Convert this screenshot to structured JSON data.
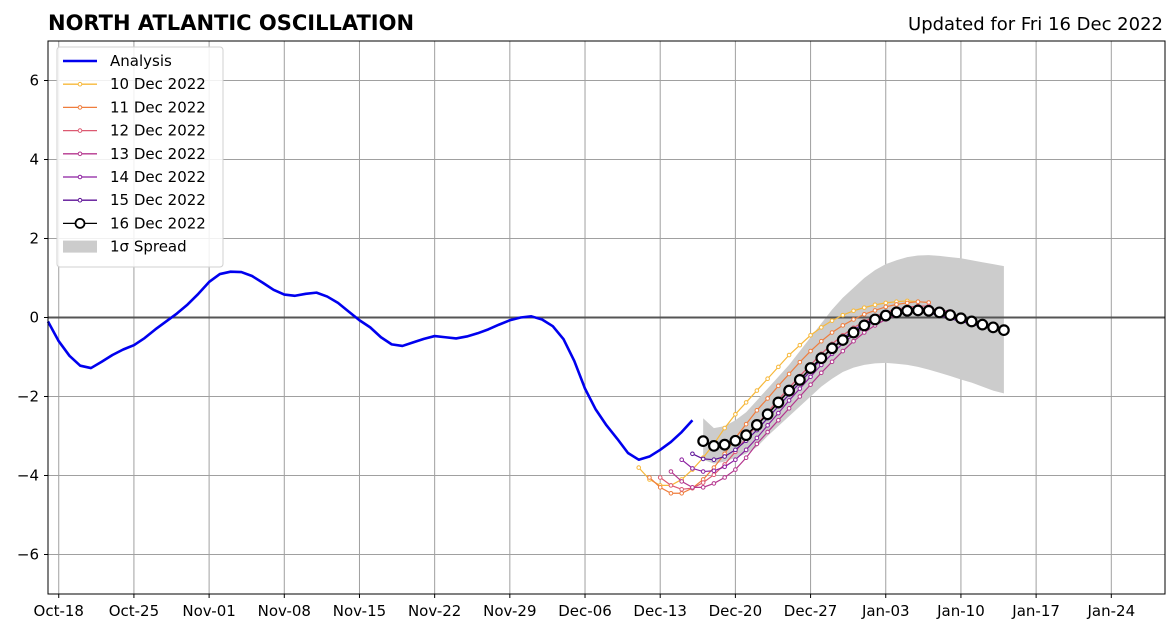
{
  "chart_data": {
    "type": "line",
    "title": "NORTH ATLANTIC OSCILLATION",
    "subtitle": "Updated for Fri 16 Dec 2022",
    "xlabel": "",
    "ylabel": "",
    "xlim": [
      "2022-10-17",
      "2023-01-29"
    ],
    "ylim": [
      -7,
      7
    ],
    "grid": true,
    "zero_line": true,
    "legend_position": "top-left",
    "x_ticks": [
      "Oct-18",
      "Oct-25",
      "Nov-01",
      "Nov-08",
      "Nov-15",
      "Nov-22",
      "Nov-29",
      "Dec-06",
      "Dec-13",
      "Dec-20",
      "Dec-27",
      "Jan-03",
      "Jan-10",
      "Jan-17",
      "Jan-24"
    ],
    "x_tick_dates": [
      "2022-10-18",
      "2022-10-25",
      "2022-11-01",
      "2022-11-08",
      "2022-11-15",
      "2022-11-22",
      "2022-11-29",
      "2022-12-06",
      "2022-12-13",
      "2022-12-20",
      "2022-12-27",
      "2023-01-03",
      "2023-01-10",
      "2023-01-17",
      "2023-01-24"
    ],
    "y_ticks": [
      -6,
      -4,
      -2,
      0,
      2,
      4,
      6
    ],
    "y_tick_labels": [
      "−6",
      "−4",
      "−2",
      "0",
      "2",
      "4",
      "6"
    ],
    "analysis": {
      "name": "Analysis",
      "color": "#0000ee",
      "start": "2022-10-17",
      "values": [
        -0.1,
        -0.6,
        -0.97,
        -1.22,
        -1.28,
        -1.12,
        -0.95,
        -0.81,
        -0.7,
        -0.52,
        -0.3,
        -0.1,
        0.1,
        0.33,
        0.6,
        0.9,
        1.1,
        1.16,
        1.15,
        1.05,
        0.88,
        0.7,
        0.58,
        0.55,
        0.6,
        0.63,
        0.53,
        0.37,
        0.15,
        -0.07,
        -0.25,
        -0.5,
        -0.68,
        -0.72,
        -0.63,
        -0.54,
        -0.47,
        -0.5,
        -0.53,
        -0.48,
        -0.4,
        -0.3,
        -0.18,
        -0.07,
        0.0,
        0.03,
        -0.05,
        -0.22,
        -0.55,
        -1.1,
        -1.8,
        -2.33,
        -2.73,
        -3.07,
        -3.43,
        -3.6,
        -3.52,
        -3.35,
        -3.15,
        -2.9,
        -2.6
      ]
    },
    "forecasts": [
      {
        "name": "10 Dec 2022",
        "color": "#f7b83a",
        "start": "2022-12-11",
        "values": [
          -3.8,
          -4.1,
          -4.25,
          -4.25,
          -4.1,
          -3.85,
          -3.55,
          -3.2,
          -2.8,
          -2.45,
          -2.15,
          -1.85,
          -1.55,
          -1.25,
          -0.95,
          -0.7,
          -0.45,
          -0.25,
          -0.08,
          0.06,
          0.17,
          0.25,
          0.32,
          0.37,
          0.4,
          0.42,
          0.4
        ]
      },
      {
        "name": "11 Dec 2022",
        "color": "#ef7d3d",
        "start": "2022-12-12",
        "values": [
          -4.05,
          -4.3,
          -4.45,
          -4.45,
          -4.32,
          -4.1,
          -3.8,
          -3.45,
          -3.05,
          -2.7,
          -2.35,
          -2.05,
          -1.73,
          -1.43,
          -1.13,
          -0.85,
          -0.6,
          -0.38,
          -0.2,
          -0.05,
          0.08,
          0.18,
          0.27,
          0.33,
          0.37,
          0.4,
          0.38
        ]
      },
      {
        "name": "12 Dec 2022",
        "color": "#dc5971",
        "start": "2022-12-13",
        "values": [
          -4.05,
          -4.25,
          -4.35,
          -4.32,
          -4.18,
          -3.98,
          -3.72,
          -3.4,
          -3.05,
          -2.72,
          -2.4,
          -2.08,
          -1.78,
          -1.48,
          -1.2,
          -0.92,
          -0.67,
          -0.45,
          -0.26,
          -0.1,
          0.03,
          0.13,
          0.21,
          0.26,
          0.29,
          0.29
        ]
      },
      {
        "name": "13 Dec 2022",
        "color": "#b4368e",
        "start": "2022-12-14",
        "values": [
          -3.9,
          -4.15,
          -4.3,
          -4.3,
          -4.2,
          -4.05,
          -3.85,
          -3.55,
          -3.2,
          -2.9,
          -2.6,
          -2.3,
          -2.0,
          -1.7,
          -1.4,
          -1.12,
          -0.85,
          -0.6,
          -0.38,
          -0.2,
          -0.05,
          0.06,
          0.14,
          0.19,
          0.21,
          0.2,
          0.15
        ]
      },
      {
        "name": "14 Dec 2022",
        "color": "#8c1fa0",
        "start": "2022-12-15",
        "values": [
          -3.6,
          -3.82,
          -3.9,
          -3.88,
          -3.78,
          -3.6,
          -3.35,
          -3.05,
          -2.73,
          -2.42,
          -2.1,
          -1.8,
          -1.5,
          -1.2,
          -0.92,
          -0.66,
          -0.44,
          -0.25,
          -0.1,
          0.02,
          0.1,
          0.15,
          0.17,
          0.15,
          0.1,
          0.02,
          -0.06,
          -0.12
        ]
      },
      {
        "name": "15 Dec 2022",
        "color": "#5c1196",
        "start": "2022-12-16",
        "values": [
          -3.45,
          -3.58,
          -3.6,
          -3.52,
          -3.35,
          -3.12,
          -2.85,
          -2.55,
          -2.25,
          -1.95,
          -1.65,
          -1.35,
          -1.05,
          -0.78,
          -0.53,
          -0.32,
          -0.15,
          -0.02,
          0.08,
          0.15,
          0.18,
          0.17,
          0.12,
          0.05,
          -0.03,
          -0.1,
          -0.17,
          -0.23
        ]
      },
      {
        "name": "16 Dec 2022",
        "color": "#000000",
        "start": "2022-12-17",
        "values": [
          -3.13,
          -3.25,
          -3.22,
          -3.12,
          -2.98,
          -2.72,
          -2.45,
          -2.15,
          -1.85,
          -1.58,
          -1.28,
          -1.03,
          -0.78,
          -0.57,
          -0.38,
          -0.2,
          -0.05,
          0.05,
          0.13,
          0.17,
          0.18,
          0.17,
          0.13,
          0.06,
          -0.02,
          -0.1,
          -0.18,
          -0.25,
          -0.32
        ]
      }
    ],
    "spread": {
      "name": "1σ Spread",
      "color": "#cccccc",
      "start": "2022-12-17",
      "upper": [
        -2.55,
        -2.8,
        -2.75,
        -2.6,
        -2.4,
        -2.1,
        -1.8,
        -1.5,
        -1.2,
        -0.85,
        -0.5,
        -0.15,
        0.2,
        0.5,
        0.75,
        1.0,
        1.2,
        1.35,
        1.45,
        1.53,
        1.57,
        1.58,
        1.56,
        1.53,
        1.5,
        1.45,
        1.4,
        1.35,
        1.3
      ],
      "lower": [
        -3.6,
        -3.7,
        -3.65,
        -3.55,
        -3.45,
        -3.28,
        -3.0,
        -2.75,
        -2.5,
        -2.25,
        -2.0,
        -1.75,
        -1.55,
        -1.38,
        -1.27,
        -1.2,
        -1.16,
        -1.15,
        -1.17,
        -1.2,
        -1.25,
        -1.32,
        -1.4,
        -1.48,
        -1.57,
        -1.65,
        -1.75,
        -1.85,
        -1.92
      ]
    }
  }
}
